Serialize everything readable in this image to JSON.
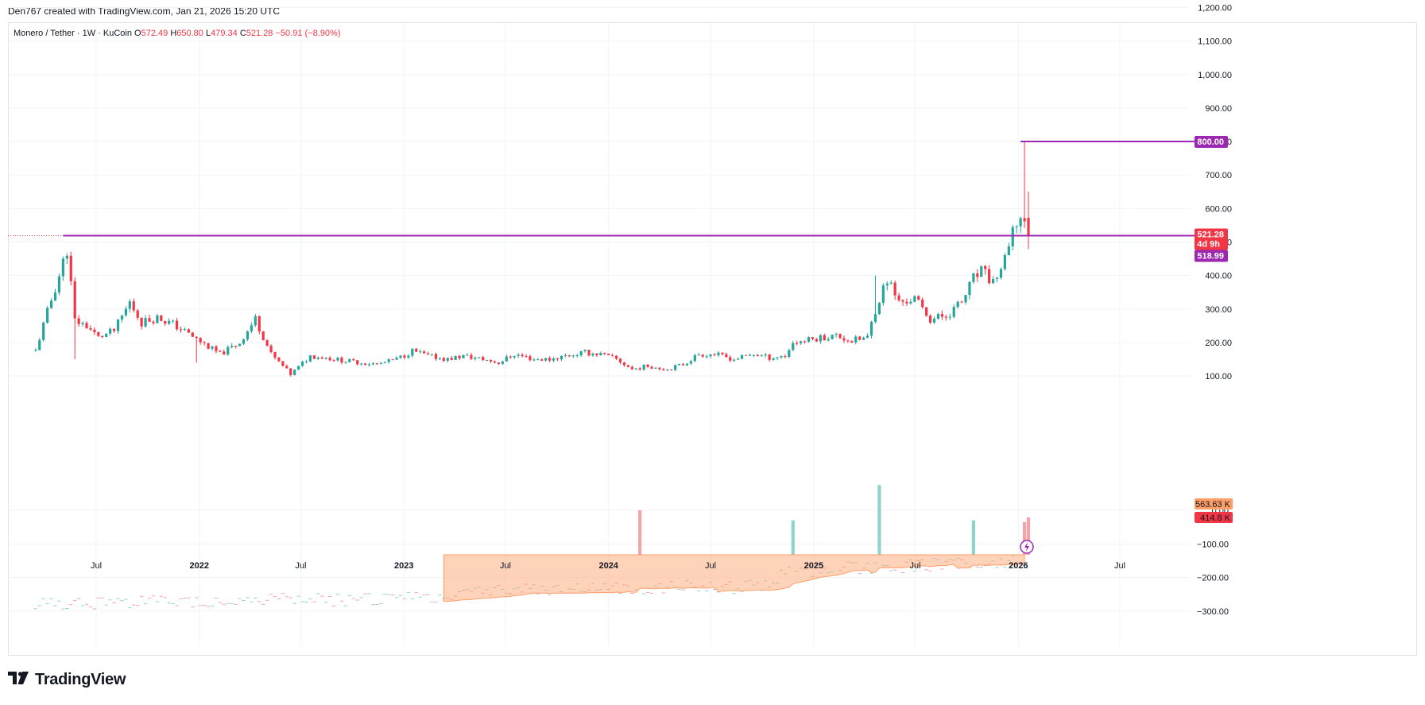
{
  "header": {
    "credit": "Den767 created with TradingView.com, Jan 21, 2026 15:20 UTC"
  },
  "legend": {
    "symbol": "Monero / Tether · 1W · KuCoin",
    "o_label": "O",
    "o_value": "572.49",
    "h_label": "H",
    "h_value": "650.80",
    "l_label": "L",
    "l_value": "479.34",
    "c_label": "C",
    "c_value": "521.28",
    "change": "−50.91 (−8.90%)"
  },
  "branding": {
    "name": "TradingView",
    "icon": "tradingview-logo-icon"
  },
  "colors": {
    "up": "#26a69a",
    "down": "#f23645",
    "level_line": "#9c27b0",
    "volume_up": "#8fd3cc",
    "volume_down": "#f5a3a8",
    "volume_ma": "#ff9e66",
    "grid": "#f0f3fa"
  },
  "chart_data": {
    "type": "candlestick",
    "timeframe": "1W",
    "price_axis": {
      "ticks": [
        1200,
        1100,
        1000,
        900,
        800,
        700,
        600,
        500,
        400,
        300,
        200,
        100
      ],
      "tick_labels": [
        "1,200.00",
        "1,100.00",
        "1,000.00",
        "900.00",
        "800.00",
        "700.00",
        "600.00",
        "500.00",
        "400.00",
        "300.00",
        "200.00",
        "100.00"
      ]
    },
    "volume_axis": {
      "ticks": [
        0,
        -100,
        -200,
        -300
      ],
      "tick_labels": [
        "0.00",
        "−100.00",
        "−200.00",
        "−300.00"
      ]
    },
    "time_axis": {
      "labels": [
        "Jul",
        "2022",
        "Jul",
        "2023",
        "Jul",
        "2024",
        "Jul",
        "2025",
        "Jul",
        "2026",
        "Jul"
      ],
      "dates": [
        "2021-07-01",
        "2022-01-01",
        "2022-07-01",
        "2023-01-01",
        "2023-07-01",
        "2024-01-01",
        "2024-07-01",
        "2025-01-01",
        "2025-07-01",
        "2026-01-01",
        "2026-07-01"
      ]
    },
    "horizontal_levels": [
      {
        "value": 800.0,
        "label": "800.00",
        "start": "2026-01-05"
      },
      {
        "value": 518.99,
        "label": "518.99",
        "start": "2021-05-03"
      }
    ],
    "price_tags": [
      {
        "label": "521.28",
        "sublabel": "4d 9h",
        "value": 521.28
      },
      {
        "label": "518.99",
        "value": 518.99
      },
      {
        "label": "800.00",
        "value": 800.0
      }
    ],
    "volume_tags": [
      {
        "label": "563.63 K",
        "kind": "volume-ma"
      },
      {
        "label": "414.8 K",
        "kind": "volume"
      }
    ],
    "last_candle": {
      "date": "2026-01-19",
      "open": 572.49,
      "high": 650.8,
      "low": 479.34,
      "close": 521.28
    },
    "close_path": [
      [
        "2021-03-15",
        175
      ],
      [
        "2021-04-05",
        290
      ],
      [
        "2021-04-26",
        400
      ],
      [
        "2021-05-10",
        480
      ],
      [
        "2021-05-24",
        265
      ],
      [
        "2021-06-14",
        250
      ],
      [
        "2021-07-05",
        215
      ],
      [
        "2021-08-02",
        235
      ],
      [
        "2021-08-30",
        320
      ],
      [
        "2021-09-20",
        260
      ],
      [
        "2021-10-18",
        275
      ],
      [
        "2021-11-15",
        255
      ],
      [
        "2021-12-13",
        225
      ],
      [
        "2022-01-10",
        195
      ],
      [
        "2022-02-07",
        165
      ],
      [
        "2022-03-14",
        200
      ],
      [
        "2022-04-11",
        270
      ],
      [
        "2022-05-09",
        165
      ],
      [
        "2022-06-13",
        105
      ],
      [
        "2022-07-18",
        160
      ],
      [
        "2022-08-15",
        155
      ],
      [
        "2022-09-19",
        145
      ],
      [
        "2022-10-17",
        140
      ],
      [
        "2022-11-14",
        135
      ],
      [
        "2022-12-19",
        150
      ],
      [
        "2023-01-16",
        175
      ],
      [
        "2023-02-13",
        160
      ],
      [
        "2023-03-20",
        150
      ],
      [
        "2023-04-17",
        160
      ],
      [
        "2023-05-22",
        150
      ],
      [
        "2023-06-19",
        140
      ],
      [
        "2023-07-17",
        165
      ],
      [
        "2023-08-21",
        150
      ],
      [
        "2023-09-18",
        150
      ],
      [
        "2023-10-16",
        160
      ],
      [
        "2023-11-20",
        170
      ],
      [
        "2023-12-18",
        165
      ],
      [
        "2024-01-15",
        150
      ],
      [
        "2024-02-12",
        120
      ],
      [
        "2024-03-11",
        130
      ],
      [
        "2024-04-15",
        120
      ],
      [
        "2024-05-13",
        135
      ],
      [
        "2024-06-10",
        165
      ],
      [
        "2024-07-08",
        165
      ],
      [
        "2024-08-12",
        150
      ],
      [
        "2024-09-16",
        165
      ],
      [
        "2024-10-14",
        155
      ],
      [
        "2024-11-11",
        160
      ],
      [
        "2024-11-25",
        200
      ],
      [
        "2024-12-16",
        205
      ],
      [
        "2025-01-13",
        215
      ],
      [
        "2025-02-10",
        220
      ],
      [
        "2025-03-10",
        205
      ],
      [
        "2025-04-07",
        215
      ],
      [
        "2025-04-21",
        300
      ],
      [
        "2025-05-12",
        390
      ],
      [
        "2025-06-02",
        320
      ],
      [
        "2025-06-30",
        330
      ],
      [
        "2025-07-28",
        270
      ],
      [
        "2025-08-25",
        280
      ],
      [
        "2025-09-22",
        320
      ],
      [
        "2025-10-13",
        390
      ],
      [
        "2025-10-27",
        410
      ],
      [
        "2025-11-17",
        380
      ],
      [
        "2025-12-08",
        440
      ],
      [
        "2025-12-29",
        560
      ],
      [
        "2026-01-12",
        572.49
      ]
    ],
    "wick_spikes": [
      {
        "date": "2021-05-24",
        "low": 150
      },
      {
        "date": "2021-12-27",
        "low": 140
      },
      {
        "date": "2022-06-13",
        "low": 98
      },
      {
        "date": "2025-04-21",
        "high": 400
      },
      {
        "date": "2026-01-12",
        "high": 800
      }
    ],
    "volume_peaks": [
      {
        "date": "2024-02-26",
        "value": 0
      },
      {
        "date": "2025-04-28",
        "value": 75
      },
      {
        "date": "2024-11-25",
        "value": -30
      },
      {
        "date": "2025-10-13",
        "value": -30
      },
      {
        "date": "2026-01-12",
        "value": -35
      }
    ]
  }
}
